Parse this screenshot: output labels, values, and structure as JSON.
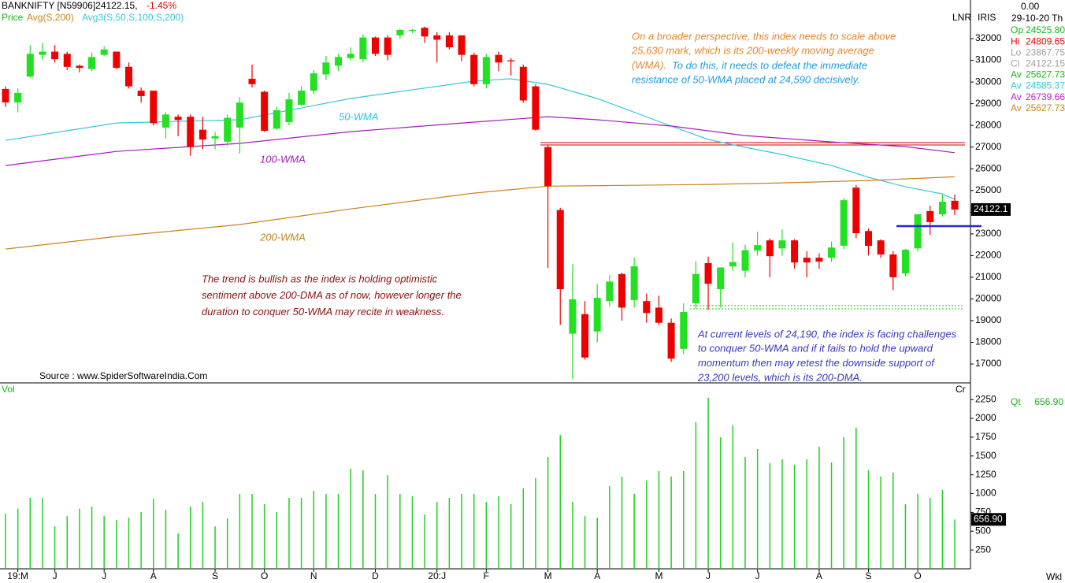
{
  "header": {
    "symbol": "BANKNIFTY [N59906]24122.15,",
    "change": "-1.45%",
    "price_label": "Price",
    "avg1": "Avg(S,200)",
    "avg3": "Avg3(S,50,S,100,S,200)",
    "lnr": "LNR",
    "iris": "IRIS"
  },
  "right_panel": {
    "top_value": "0.00",
    "date": "29-10-20 Th",
    "readings": [
      {
        "label": "Op",
        "value": "24525.80",
        "color": "#19b419"
      },
      {
        "label": "Hi",
        "value": "24809.65",
        "color": "#e00000"
      },
      {
        "label": "Lo",
        "value": "23867.75",
        "color": "#a0a0a0"
      },
      {
        "label": "Cl",
        "value": "24122.15",
        "color": "#a0a0a0"
      },
      {
        "label": "Av",
        "value": "25627.73",
        "color": "#19b419"
      },
      {
        "label": "Av",
        "value": "24585.37",
        "color": "#33c6dc"
      },
      {
        "label": "Av",
        "value": "26739.66",
        "color": "#c020c0"
      },
      {
        "label": "Av",
        "value": "25627.73",
        "color": "#c8841c"
      }
    ],
    "qt": {
      "label": "Qt",
      "value": "656.90"
    },
    "cr": "Cr",
    "wkl": "Wkl"
  },
  "annotations": {
    "broader": {
      "color": "#e8862a",
      "lines": [
        "On a broader perspective, this index needs to scale above",
        "25,630 mark, which is its 200-weekly moving average",
        "(WMA)."
      ]
    },
    "broader_cont": {
      "color": "#1e9be0",
      "lines": [
        "To do this, it needs to defeat the immediate",
        "resistance of 50-WMA placed at 24,590 decisively."
      ]
    },
    "trend": {
      "color": "#8b1010",
      "lines": [
        "The trend is bullish as the index is holding optimistic",
        "sentiment above 200-DMA as of now, however longer the",
        "duration to conquer 50-WMA may recite in weakness."
      ]
    },
    "current": {
      "color": "#3838c0",
      "lines": [
        "At current levels of 24,190, the index is facing challenges",
        "to conquer 50-WMA and if it fails to hold the upward",
        "momentum then may retest the downside support of",
        "23,200 levels, which is its 200-DMA."
      ]
    },
    "source": "Source : www.SpiderSoftwareIndia.Com"
  },
  "chart_data": [
    {
      "type": "candlestick",
      "up_color": "#22e022",
      "down_color": "#ee0000",
      "ylim": [
        16130,
        33780
      ],
      "yticks": [
        17000,
        18000,
        19000,
        20000,
        21000,
        22000,
        23000,
        24000,
        25000,
        26000,
        27000,
        28000,
        29000,
        30000,
        31000,
        32000
      ],
      "price_tag": "24122.1",
      "open": [
        29680,
        29060,
        30250,
        31250,
        31400,
        31300,
        30750,
        30600,
        31250,
        31400,
        30700,
        29600,
        29600,
        27900,
        28400,
        28400,
        27800,
        27400,
        27250,
        27900,
        30150,
        29550,
        27850,
        28150,
        28950,
        29600,
        30350,
        30750,
        31100,
        31050,
        32050,
        32050,
        32150,
        32350,
        32500,
        32150,
        32150,
        32150,
        31250,
        29900,
        31250,
        31000,
        30700,
        29800,
        27000,
        24100,
        18400,
        19300,
        18500,
        19900,
        21150,
        19950,
        19900,
        19600,
        18900,
        17700,
        19800,
        21650,
        20450,
        21500,
        21300,
        22230,
        22700,
        22330,
        22700,
        21900,
        21900,
        21900,
        22450,
        25130,
        23130,
        22700,
        22050,
        21180,
        22330,
        24050,
        23900,
        24525.8
      ],
      "high": [
        29800,
        29700,
        31700,
        31800,
        31700,
        31400,
        30800,
        31350,
        31650,
        31400,
        30900,
        29750,
        29600,
        28600,
        28500,
        28500,
        28400,
        27700,
        28500,
        29300,
        30800,
        29600,
        28850,
        29500,
        29800,
        30550,
        31200,
        31300,
        31600,
        32200,
        32100,
        32150,
        32450,
        32450,
        32550,
        32300,
        32300,
        32150,
        31350,
        31300,
        31400,
        31100,
        30800,
        29900,
        27100,
        24200,
        21600,
        19900,
        20700,
        21100,
        21200,
        21900,
        20250,
        20150,
        19100,
        19800,
        21750,
        21950,
        21450,
        22600,
        22500,
        23100,
        22800,
        23200,
        22750,
        22200,
        22100,
        22650,
        24650,
        25250,
        23250,
        22750,
        22200,
        22300,
        23900,
        24300,
        24800,
        24809.65
      ],
      "low": [
        28850,
        28600,
        30200,
        31000,
        30900,
        30550,
        30450,
        30500,
        31200,
        30600,
        29700,
        29050,
        28000,
        27400,
        27500,
        26600,
        26900,
        26900,
        27050,
        26700,
        29750,
        27700,
        27800,
        28000,
        28900,
        29450,
        30100,
        30500,
        31000,
        30900,
        31200,
        31000,
        32000,
        32250,
        31800,
        30900,
        31500,
        30950,
        29800,
        29700,
        30500,
        30300,
        29050,
        27750,
        21430,
        18800,
        16300,
        17200,
        18000,
        19650,
        19000,
        19600,
        18900,
        18800,
        17100,
        17450,
        19550,
        19500,
        19600,
        21300,
        21000,
        22000,
        21000,
        22000,
        21400,
        21000,
        21400,
        21700,
        22300,
        22800,
        22000,
        21900,
        20400,
        21050,
        22200,
        22950,
        23800,
        23867.75
      ],
      "close": [
        29060,
        29500,
        31300,
        31400,
        31050,
        30700,
        30650,
        31150,
        31500,
        30650,
        29800,
        29350,
        28100,
        28500,
        28250,
        27000,
        27350,
        27500,
        28350,
        29050,
        29900,
        27750,
        28700,
        29200,
        29600,
        30400,
        30900,
        31150,
        31300,
        32050,
        31300,
        31250,
        32400,
        32400,
        32100,
        31950,
        31600,
        31250,
        29900,
        31150,
        30900,
        30950,
        29150,
        27800,
        25200,
        20450,
        19980,
        17300,
        20050,
        20800,
        19600,
        21500,
        19350,
        18900,
        17250,
        19400,
        21150,
        20700,
        21450,
        21700,
        22250,
        22480,
        21970,
        22700,
        21680,
        21680,
        21720,
        22370,
        24550,
        23030,
        22450,
        22050,
        21000,
        22270,
        23900,
        23540,
        24480,
        24122.15
      ],
      "lines": [
        {
          "name": "50-WMA",
          "color": "#33c6dc",
          "x": [
            0,
            9,
            19,
            28,
            38,
            41,
            44,
            48,
            54,
            57,
            60,
            63,
            67,
            70,
            73,
            76,
            77
          ],
          "values": [
            27310,
            28110,
            28260,
            29240,
            30040,
            30150,
            29890,
            29240,
            27970,
            27350,
            26990,
            26660,
            26150,
            25610,
            25170,
            24840,
            24590
          ]
        },
        {
          "name": "100-WMA",
          "color": "#a020b8",
          "x": [
            0,
            9,
            19,
            28,
            38,
            44,
            48,
            54,
            60,
            67,
            73,
            77
          ],
          "values": [
            26150,
            26800,
            27170,
            27710,
            28150,
            28400,
            28260,
            27970,
            27530,
            27240,
            27020,
            26740
          ]
        },
        {
          "name": "200-WMA",
          "color": "#c8841c",
          "x": [
            0,
            9,
            19,
            28,
            38,
            44,
            51,
            57,
            63,
            70,
            77
          ],
          "values": [
            22300,
            22880,
            23430,
            24150,
            24880,
            25200,
            25240,
            25280,
            25350,
            25460,
            25630
          ]
        }
      ]
    },
    {
      "type": "bar",
      "title": "Vol",
      "color": "#22d022",
      "ylim": [
        0,
        2430
      ],
      "yticks": [
        250,
        500,
        750,
        1000,
        1250,
        1500,
        1750,
        2000,
        2250
      ],
      "value_tag": "656.90",
      "categories": [
        null,
        "19:M",
        null,
        null,
        "J",
        null,
        null,
        null,
        "J",
        null,
        null,
        null,
        "A",
        null,
        null,
        null,
        null,
        "S",
        null,
        null,
        null,
        "O",
        null,
        null,
        null,
        "N",
        null,
        null,
        null,
        null,
        "D",
        null,
        null,
        null,
        null,
        "20:J",
        null,
        null,
        null,
        "F",
        null,
        null,
        null,
        null,
        "M",
        null,
        null,
        null,
        "A",
        null,
        null,
        null,
        null,
        "M",
        null,
        null,
        null,
        "J",
        null,
        null,
        null,
        "J",
        null,
        null,
        null,
        null,
        "A",
        null,
        null,
        null,
        "S",
        null,
        null,
        null,
        "O",
        null,
        null,
        null
      ],
      "values": [
        733,
        800,
        943,
        943,
        565,
        700,
        800,
        827,
        700,
        650,
        680,
        754,
        932,
        785,
        470,
        827,
        890,
        565,
        670,
        995,
        995,
        860,
        754,
        943,
        943,
        1037,
        995,
        995,
        1330,
        1310,
        995,
        1246,
        995,
        964,
        723,
        890,
        943,
        995,
        995,
        890,
        964,
        860,
        1070,
        1205,
        1487,
        1780,
        890,
        700,
        680,
        1100,
        1226,
        995,
        1173,
        1299,
        1226,
        1299,
        1948,
        2273,
        1749,
        1906,
        1487,
        1592,
        1404,
        1456,
        1383,
        1456,
        1624,
        1414,
        1749,
        1875,
        1310,
        1226,
        1278,
        860,
        995,
        943,
        1047,
        656.9
      ]
    }
  ]
}
